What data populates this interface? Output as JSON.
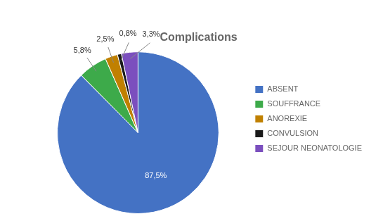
{
  "chart_data": {
    "type": "pie",
    "title": "Complications",
    "categories": [
      "ABSENT",
      "SOUFFRANCE",
      "ANOREXIE",
      "CONVULSION",
      "SEJOUR NEONATOLOGIE"
    ],
    "values": [
      87.5,
      5.8,
      2.5,
      0.8,
      3.3
    ],
    "value_labels": [
      "87,5%",
      "5,8%",
      "2,5%",
      "0,8%",
      "3,3%"
    ],
    "colors": [
      "#4472C4",
      "#3DAA4A",
      "#C08000",
      "#1A1A1A",
      "#7B4FBE"
    ],
    "legend": "right",
    "data_labels": true
  }
}
